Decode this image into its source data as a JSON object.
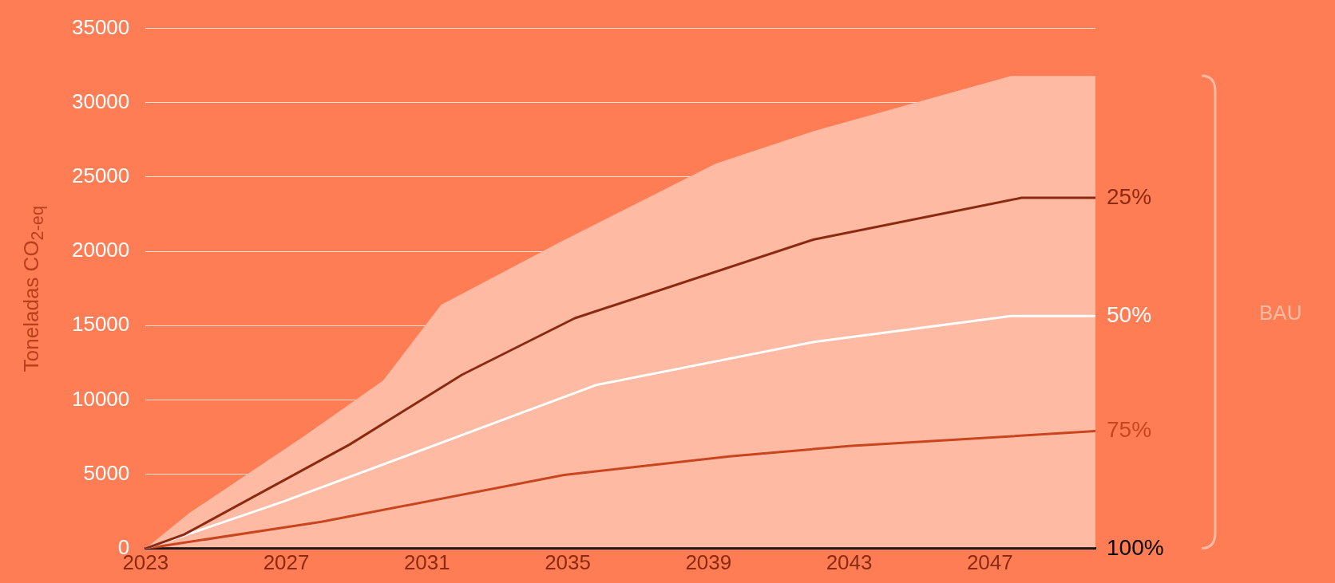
{
  "chart_data": {
    "type": "line",
    "ylabel": "Toneladas CO$_{2-eq}$",
    "xlim": [
      2023,
      2050
    ],
    "xticks": [
      2023,
      2027,
      2031,
      2035,
      2039,
      2043,
      2047
    ],
    "ylim": [
      0,
      35000
    ],
    "yticks": [
      0,
      5000,
      10000,
      15000,
      20000,
      25000,
      30000,
      35000
    ],
    "grid": "y",
    "legend": false,
    "marker": "none",
    "line_style": "solid",
    "series": [
      {
        "name": "BAU",
        "type": "area",
        "color": "#ffbaa3",
        "x": [
          2023,
          2024.25,
          2027.5,
          2029.75,
          2031.4,
          2034.85,
          2039.2,
          2042,
          2047.6,
          2050
        ],
        "values": [
          0,
          2400,
          7550,
          11300,
          16400,
          20700,
          25900,
          28100,
          31800,
          31800
        ]
      },
      {
        "name": "25%",
        "type": "line",
        "color": "#8b2a12",
        "x": [
          2023,
          2024.1,
          2028.8,
          2032,
          2035.2,
          2042,
          2047.9,
          2050
        ],
        "values": [
          0,
          950,
          7000,
          11700,
          15500,
          20800,
          23600,
          23600
        ]
      },
      {
        "name": "50%",
        "type": "line",
        "color": "#ffffff",
        "x": [
          2023,
          2024.5,
          2026.9,
          2033.2,
          2035.8,
          2042,
          2047.6,
          2050
        ],
        "values": [
          0,
          1200,
          3150,
          8700,
          11000,
          13900,
          15650,
          15650
        ]
      },
      {
        "name": "75%",
        "type": "line",
        "color": "#c9451e",
        "x": [
          2023,
          2028,
          2034.9,
          2039.6,
          2043,
          2050
        ],
        "values": [
          0,
          1800,
          4950,
          6200,
          6900,
          7900
        ]
      },
      {
        "name": "100%",
        "type": "line",
        "color": "#000000",
        "x": [
          2023,
          2050
        ],
        "values": [
          0,
          0
        ]
      }
    ]
  }
}
